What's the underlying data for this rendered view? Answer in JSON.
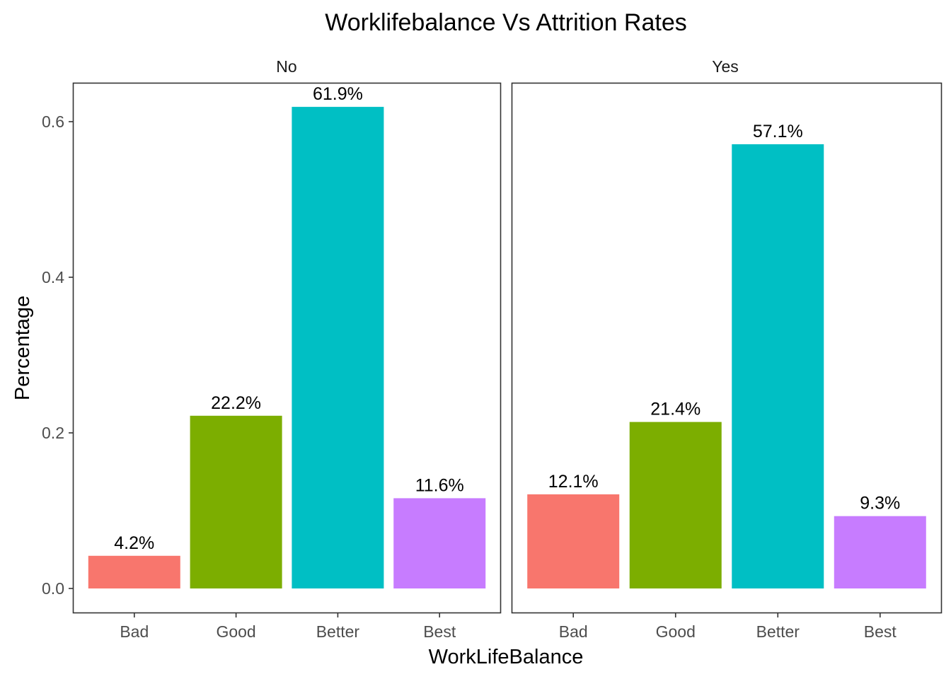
{
  "chart_data": {
    "type": "bar",
    "title": "Worklifebalance Vs Attrition Rates",
    "xlabel": "WorkLifeBalance",
    "ylabel": "Percentage",
    "ylim": [
      0,
      0.66
    ],
    "yticks": [
      0.0,
      0.2,
      0.4,
      0.6
    ],
    "ytick_labels": [
      "0.0",
      "0.2",
      "0.4",
      "0.6"
    ],
    "grid": false,
    "legend": "none",
    "categories": [
      "Bad",
      "Good",
      "Better",
      "Best"
    ],
    "colors": [
      "#F8766D",
      "#7CAE00",
      "#00BFC4",
      "#C77CFF"
    ],
    "facets": [
      {
        "label": "No",
        "values": [
          0.042,
          0.222,
          0.619,
          0.116
        ],
        "value_labels": [
          "4.2%",
          "22.2%",
          "61.9%",
          "11.6%"
        ]
      },
      {
        "label": "Yes",
        "values": [
          0.121,
          0.214,
          0.571,
          0.093
        ],
        "value_labels": [
          "12.1%",
          "21.4%",
          "57.1%",
          "9.3%"
        ]
      }
    ]
  }
}
